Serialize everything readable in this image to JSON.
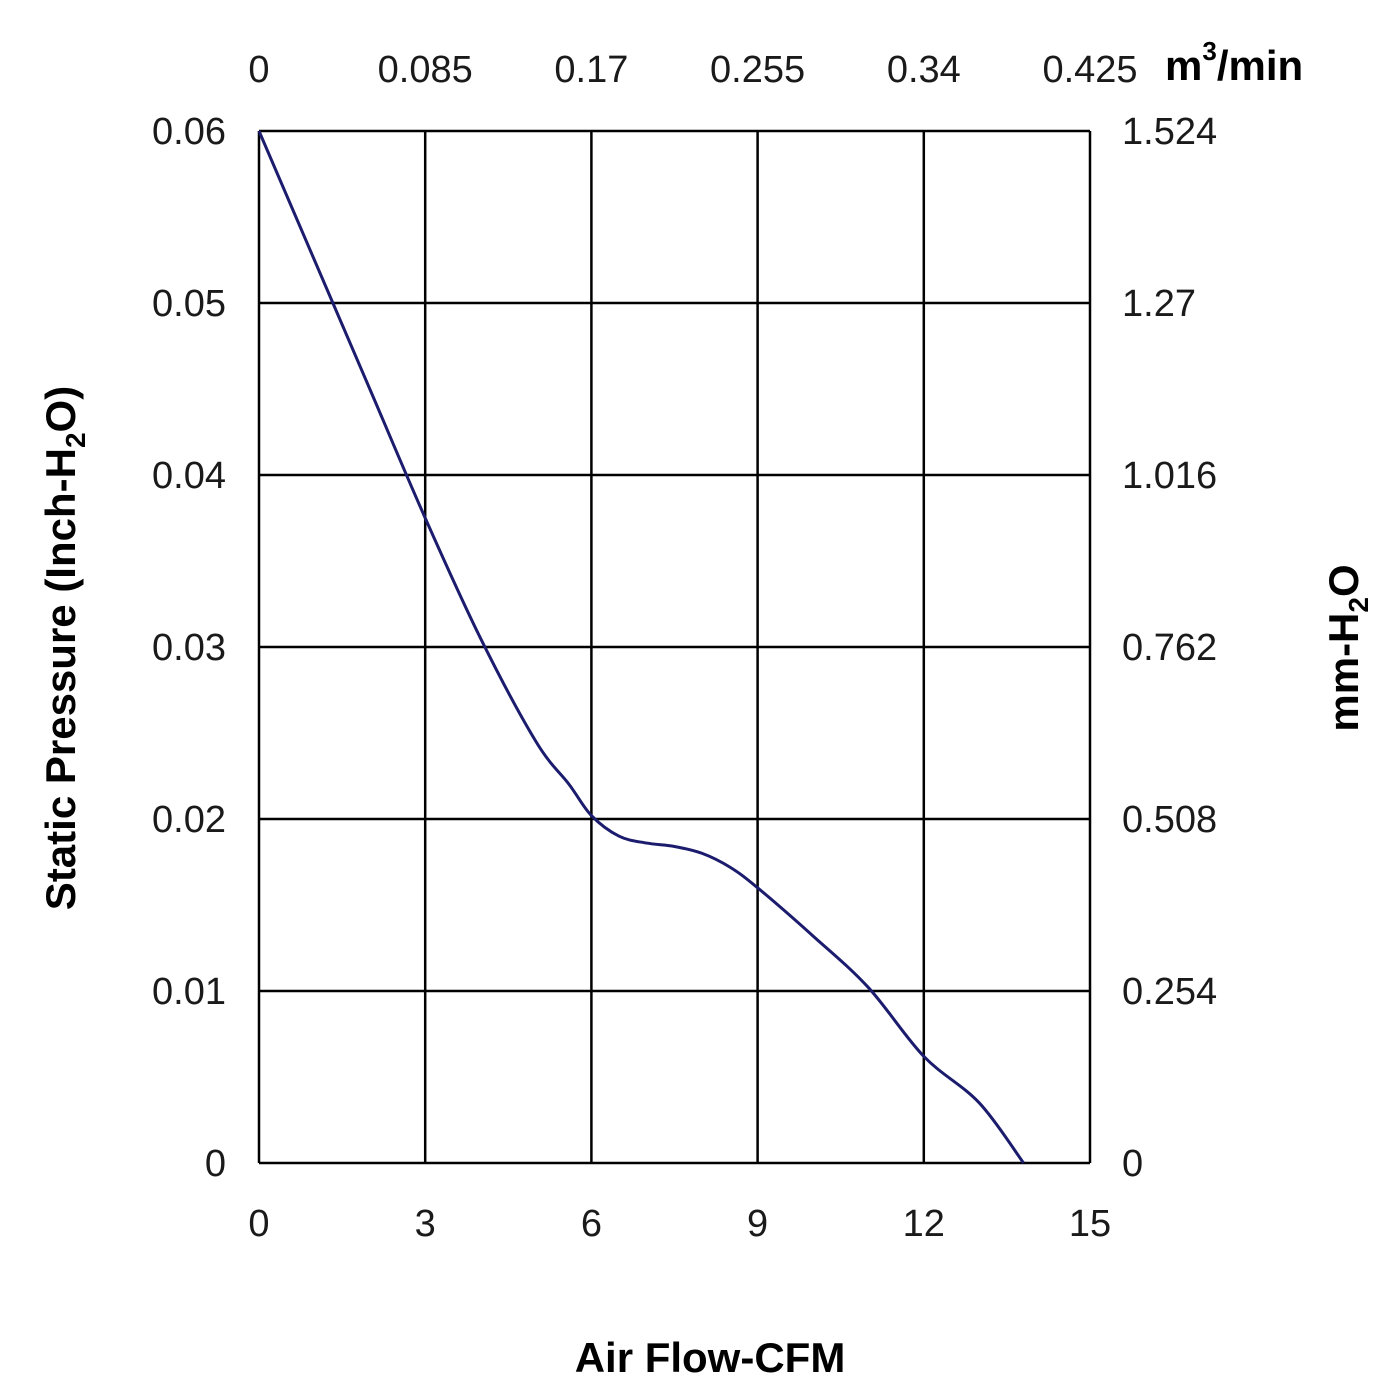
{
  "chart_data": {
    "type": "line",
    "title": "",
    "xlabel": "Air Flow-CFM",
    "ylabel_main": "Static Pressure (Inch-H",
    "ylabel_sub": "2",
    "ylabel_end": "O)",
    "y2label_main": "mm-H",
    "y2label_sub": "2",
    "y2label_end": "O",
    "x2label_main": "m",
    "x2label_sup": "3",
    "x2label_end": "/min",
    "xlim": [
      0,
      15
    ],
    "ylim": [
      0,
      0.06
    ],
    "x_ticks": [
      "0",
      "3",
      "6",
      "9",
      "12",
      "15"
    ],
    "y_ticks": [
      "0",
      "0.01",
      "0.02",
      "0.03",
      "0.04",
      "0.05",
      "0.06"
    ],
    "x2_ticks": [
      "0",
      "0.085",
      "0.17",
      "0.255",
      "0.34",
      "0.425"
    ],
    "y2_ticks": [
      "0",
      "0.254",
      "0.508",
      "0.762",
      "1.016",
      "1.27",
      "1.524"
    ],
    "grid": true,
    "series": [
      {
        "name": "Static Pressure",
        "color": "#1c1c6e",
        "x": [
          0,
          1,
          2,
          3,
          4,
          5,
          5.6,
          6,
          6.5,
          7,
          7.5,
          8,
          8.5,
          9,
          10,
          11,
          12,
          13,
          13.8
        ],
        "y": [
          0.06,
          0.0525,
          0.045,
          0.0375,
          0.0305,
          0.0245,
          0.022,
          0.0202,
          0.019,
          0.0186,
          0.0184,
          0.018,
          0.0172,
          0.016,
          0.0132,
          0.0102,
          0.0062,
          0.0035,
          0
        ]
      }
    ]
  }
}
